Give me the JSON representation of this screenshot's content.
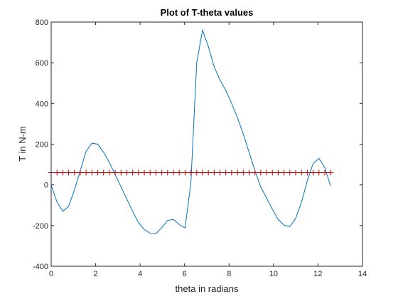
{
  "chart_data": {
    "type": "line",
    "title": "Plot of T-theta values",
    "xlabel": "theta in radians",
    "ylabel": "T in N-m",
    "xlim": [
      0,
      14
    ],
    "ylim": [
      -400,
      800
    ],
    "xticks": [
      0,
      2,
      4,
      6,
      8,
      10,
      12,
      14
    ],
    "yticks": [
      -400,
      -200,
      0,
      200,
      400,
      600,
      800
    ],
    "grid": false,
    "legend": null,
    "series": [
      {
        "color": "#0072BD",
        "style": "line",
        "x": [
          0.0,
          0.2618,
          0.5236,
          0.7854,
          1.0472,
          1.309,
          1.5708,
          1.8326,
          2.0944,
          2.3562,
          2.618,
          2.8798,
          3.1416,
          3.4034,
          3.6652,
          3.927,
          4.1888,
          4.4506,
          4.7124,
          4.9742,
          5.236,
          5.4978,
          5.7596,
          6.0214,
          6.2832,
          6.545,
          6.8068,
          7.0686,
          7.3304,
          7.5922,
          7.854,
          8.1158,
          8.3776,
          8.6394,
          8.9012,
          9.163,
          9.4248,
          9.6866,
          9.9484,
          10.2102,
          10.472,
          10.7338,
          10.9956,
          11.2574,
          11.5192,
          11.781,
          12.0428,
          12.3046,
          12.5664
        ],
        "y": [
          0,
          -85,
          -130,
          -105,
          -25,
          70,
          165,
          205,
          200,
          160,
          110,
          50,
          -10,
          -70,
          -130,
          -185,
          -220,
          -238,
          -240,
          -210,
          -175,
          -170,
          -195,
          -212,
          10,
          600,
          760,
          680,
          580,
          515,
          465,
          400,
          330,
          250,
          160,
          70,
          -10,
          -65,
          -120,
          -170,
          -198,
          -205,
          -165,
          -85,
          20,
          105,
          130,
          85,
          -5
        ]
      },
      {
        "color": "#CC0000",
        "style": "markers",
        "marker": "+",
        "x": [
          0.0,
          0.2618,
          0.5236,
          0.7854,
          1.0472,
          1.309,
          1.5708,
          1.8326,
          2.0944,
          2.3562,
          2.618,
          2.8798,
          3.1416,
          3.4034,
          3.6652,
          3.927,
          4.1888,
          4.4506,
          4.7124,
          4.9742,
          5.236,
          5.4978,
          5.7596,
          6.0214,
          6.2832,
          6.545,
          6.8068,
          7.0686,
          7.3304,
          7.5922,
          7.854,
          8.1158,
          8.3776,
          8.6394,
          8.9012,
          9.163,
          9.4248,
          9.6866,
          9.9484,
          10.2102,
          10.472,
          10.7338,
          10.9956,
          11.2574,
          11.5192,
          11.781,
          12.0428,
          12.3046,
          12.5664
        ],
        "y": [
          60,
          60,
          60,
          60,
          60,
          60,
          60,
          60,
          60,
          60,
          60,
          60,
          60,
          60,
          60,
          60,
          60,
          60,
          60,
          60,
          60,
          60,
          60,
          60,
          60,
          60,
          60,
          60,
          60,
          60,
          60,
          60,
          60,
          60,
          60,
          60,
          60,
          60,
          60,
          60,
          60,
          60,
          60,
          60,
          60,
          60,
          60,
          60,
          60
        ]
      }
    ]
  }
}
